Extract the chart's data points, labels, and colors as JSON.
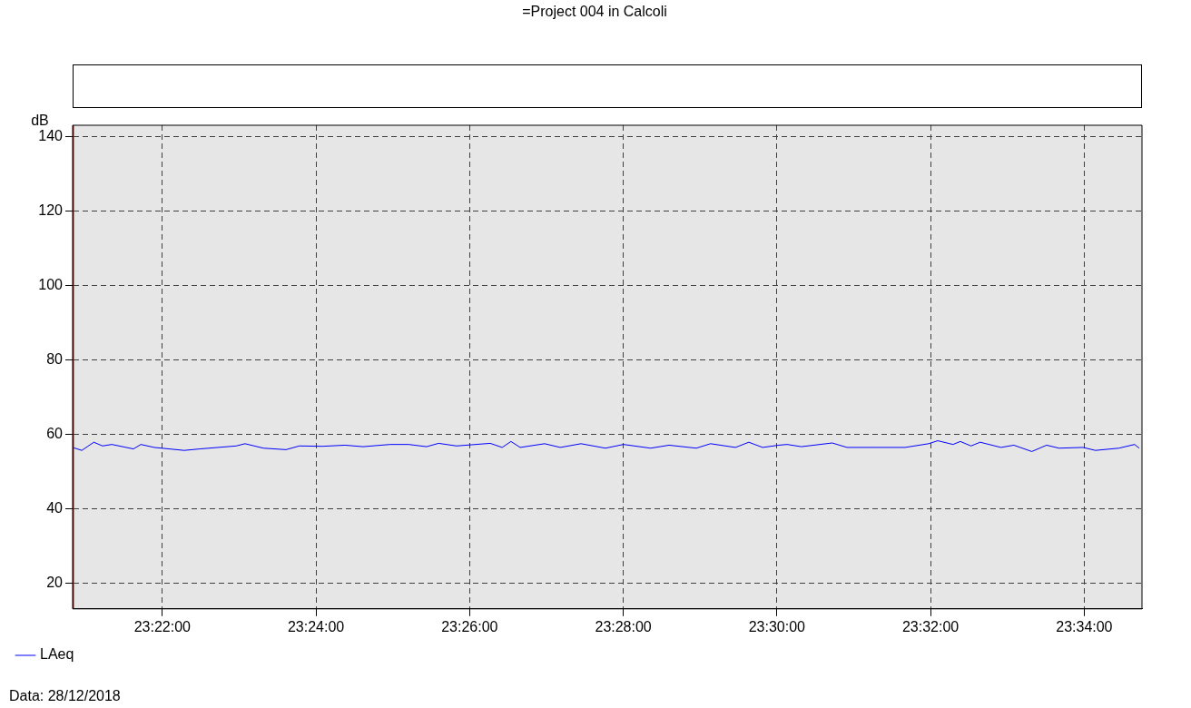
{
  "chart_data": {
    "type": "line",
    "title": "=Project 004 in Calcoli",
    "ylabel": "dB",
    "annotations": [
      "Data: 28/12/2018"
    ],
    "x": [
      23.3472,
      23.3492,
      23.3518,
      23.3537,
      23.3557,
      23.3604,
      23.362,
      23.3649,
      23.3714,
      23.3748,
      23.3827,
      23.3846,
      23.3886,
      23.3935,
      23.3964,
      23.4014,
      23.4063,
      23.4102,
      23.4161,
      23.4201,
      23.424,
      23.4266,
      23.4305,
      23.4378,
      23.4404,
      23.4423,
      23.4443,
      23.4496,
      23.453,
      23.4575,
      23.4628,
      23.4667,
      23.4726,
      23.4766,
      23.4825,
      23.4856,
      23.491,
      23.4939,
      23.4969,
      23.5004,
      23.5022,
      23.5053,
      23.512,
      23.5152,
      23.5219,
      23.5278,
      23.5329,
      23.5349,
      23.5382,
      23.5398,
      23.5421,
      23.5441,
      23.5486,
      23.5514,
      23.5553,
      23.5585,
      23.5612,
      23.5664,
      23.5691,
      23.5742,
      23.5776,
      23.5786
    ],
    "series": [
      {
        "name": "LAeq",
        "color": "#0000ff",
        "values": [
          56.4,
          55.6,
          57.8,
          56.8,
          57.2,
          56.0,
          57.2,
          56.4,
          55.6,
          56.0,
          56.8,
          57.4,
          56.2,
          55.8,
          56.8,
          56.7,
          57.0,
          56.6,
          57.2,
          57.2,
          56.6,
          57.5,
          56.8,
          57.5,
          56.4,
          58.0,
          56.4,
          57.4,
          56.4,
          57.4,
          56.2,
          57.2,
          56.2,
          57.0,
          56.2,
          57.4,
          56.4,
          57.8,
          56.4,
          57.0,
          57.2,
          56.6,
          57.6,
          56.4,
          56.4,
          56.4,
          57.4,
          58.2,
          57.2,
          58.0,
          56.8,
          57.8,
          56.4,
          57.0,
          55.3,
          57.0,
          56.2,
          56.4,
          55.6,
          56.2,
          57.2,
          56.2
        ]
      }
    ],
    "xlim": [
      23.3472,
      23.5792
    ],
    "xticks": [
      {
        "value": 23.36667,
        "label": "23:22:00"
      },
      {
        "value": 23.4,
        "label": "23:24:00"
      },
      {
        "value": 23.43333,
        "label": "23:26:00"
      },
      {
        "value": 23.46667,
        "label": "23:28:00"
      },
      {
        "value": 23.5,
        "label": "23:30:00"
      },
      {
        "value": 23.53333,
        "label": "23:32:00"
      },
      {
        "value": 23.56667,
        "label": "23:34:00"
      }
    ],
    "ylim": [
      13,
      143
    ],
    "yticks": [
      20,
      40,
      60,
      80,
      100,
      120,
      140
    ],
    "ref_lines": [
      {
        "axis": "x",
        "value": 23.3474,
        "color": "#ff0000"
      }
    ],
    "grid": true,
    "legend": "bottom left",
    "marker": "none",
    "line_style": "solid"
  }
}
